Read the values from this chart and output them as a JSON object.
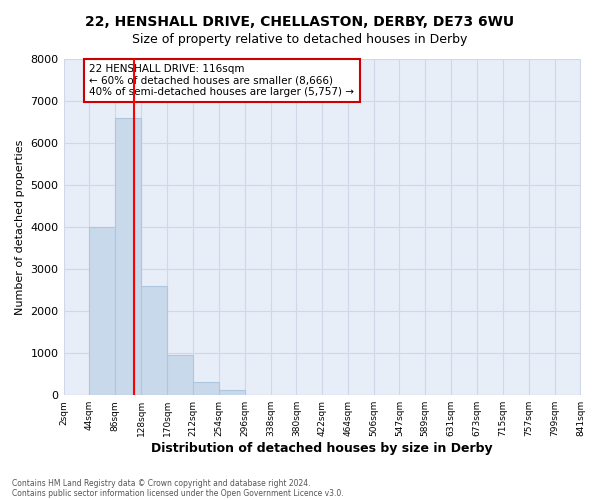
{
  "title": "22, HENSHALL DRIVE, CHELLASTON, DERBY, DE73 6WU",
  "subtitle": "Size of property relative to detached houses in Derby",
  "xlabel": "Distribution of detached houses by size in Derby",
  "ylabel": "Number of detached properties",
  "footnote1": "Contains HM Land Registry data © Crown copyright and database right 2024.",
  "footnote2": "Contains public sector information licensed under the Open Government Licence v3.0.",
  "bar_edges": [
    2,
    44,
    86,
    128,
    170,
    212,
    254,
    296,
    338,
    380,
    422,
    464,
    506,
    547,
    589,
    631,
    673,
    715,
    757,
    799,
    841
  ],
  "bar_heights": [
    0,
    4000,
    6600,
    2600,
    950,
    320,
    120,
    0,
    0,
    0,
    0,
    0,
    0,
    0,
    0,
    0,
    0,
    0,
    0,
    0
  ],
  "bar_color": "#c8d9eb",
  "bar_edgecolor": "#aec6de",
  "property_line_x": 116,
  "ylim": [
    0,
    8000
  ],
  "yticks": [
    0,
    1000,
    2000,
    3000,
    4000,
    5000,
    6000,
    7000,
    8000
  ],
  "annotation_line1": "22 HENSHALL DRIVE: 116sqm",
  "annotation_line2": "← 60% of detached houses are smaller (8,666)",
  "annotation_line3": "40% of semi-detached houses are larger (5,757) →",
  "grid_color": "#d0d8e8",
  "background_color": "#e8eef8"
}
